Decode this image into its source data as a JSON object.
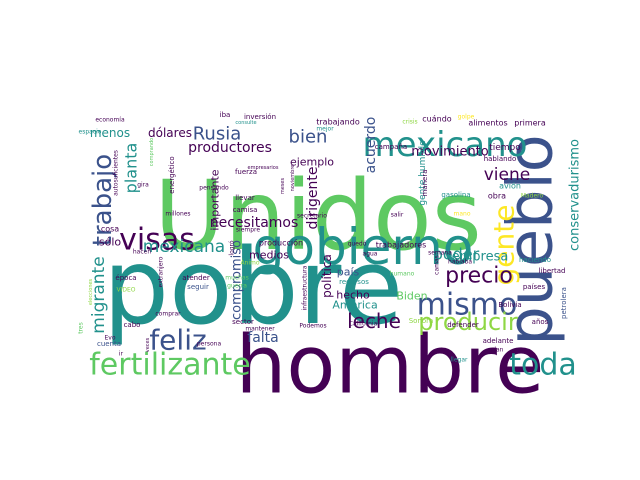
{
  "palette": {
    "purple": "#440154",
    "indigo": "#3b528b",
    "teal": "#21918c",
    "green": "#5ec962",
    "lime": "#8fd744",
    "yellow": "#fde725",
    "blue": "#31688e",
    "sea": "#35b779"
  },
  "words": [
    {
      "text": "Unidos"
    },
    {
      "text": "pobre"
    },
    {
      "text": "hombre"
    },
    {
      "text": "pueblo"
    },
    {
      "text": "gobierno"
    },
    {
      "text": "mexicano"
    },
    {
      "text": "fertilizante"
    },
    {
      "text": "visas"
    },
    {
      "text": "mismo"
    },
    {
      "text": "toda"
    },
    {
      "text": "feliz"
    },
    {
      "text": "gente"
    },
    {
      "text": "trabajo"
    },
    {
      "text": "producir"
    },
    {
      "text": "precio"
    },
    {
      "text": "leche"
    },
    {
      "text": "Rusia"
    },
    {
      "text": "bien"
    },
    {
      "text": "mexicana"
    },
    {
      "text": "viene"
    },
    {
      "text": "migrante"
    },
    {
      "text": "poder"
    },
    {
      "text": "planta"
    },
    {
      "text": "productores"
    },
    {
      "text": "necesitamos"
    },
    {
      "text": "movimiento"
    },
    {
      "text": "conservadurismo"
    },
    {
      "text": "empresa"
    },
    {
      "text": "dirigente"
    },
    {
      "text": "acuerdo"
    },
    {
      "text": "compromiso"
    },
    {
      "text": "falta"
    },
    {
      "text": "dólares"
    },
    {
      "text": "menos"
    },
    {
      "text": "ejemplo"
    },
    {
      "text": "medios"
    },
    {
      "text": "hecho"
    },
    {
      "text": "política"
    },
    {
      "text": "América"
    },
    {
      "text": "país"
    },
    {
      "text": "Biden"
    },
    {
      "text": "sólo"
    },
    {
      "text": "importante"
    },
    {
      "text": "gente humilde"
    },
    {
      "text": "trabajando"
    },
    {
      "text": "campaña"
    },
    {
      "text": "cuándo"
    },
    {
      "text": "primera"
    },
    {
      "text": "alimentos"
    },
    {
      "text": "tiempo"
    },
    {
      "text": "hablando"
    },
    {
      "text": "avión"
    },
    {
      "text": "obra"
    },
    {
      "text": "gasolina"
    },
    {
      "text": "haciendo"
    },
    {
      "text": "libertad"
    },
    {
      "text": "países"
    },
    {
      "text": "Bolivia"
    },
    {
      "text": "petrolera"
    },
    {
      "text": "años"
    },
    {
      "text": "adelante"
    },
    {
      "text": "plan"
    },
    {
      "text": "llegar"
    },
    {
      "text": "defender"
    },
    {
      "text": "Sonora"
    },
    {
      "text": "California"
    },
    {
      "text": "Podemos"
    },
    {
      "text": "trabajadores"
    },
    {
      "text": "producción"
    },
    {
      "text": "recursos"
    },
    {
      "text": "humano"
    },
    {
      "text": "agua"
    },
    {
      "text": "quedó"
    },
    {
      "text": "hacen"
    },
    {
      "text": "época"
    },
    {
      "text": "atender"
    },
    {
      "text": "seguir"
    },
    {
      "text": "muchas"
    },
    {
      "text": "guerra"
    },
    {
      "text": "sector"
    },
    {
      "text": "mantener"
    },
    {
      "text": "persona"
    },
    {
      "text": "cuenta"
    },
    {
      "text": "comprar"
    },
    {
      "text": "cabo"
    },
    {
      "text": "cosa"
    },
    {
      "text": "extranjero"
    },
    {
      "text": "VIDEO"
    },
    {
      "text": "Evo"
    },
    {
      "text": "veces"
    },
    {
      "text": "elecciones"
    },
    {
      "text": "camisa"
    },
    {
      "text": "llevar"
    },
    {
      "text": "fuerza"
    },
    {
      "text": "energético"
    },
    {
      "text": "autosuficientes"
    },
    {
      "text": "gira"
    },
    {
      "text": "millones"
    },
    {
      "text": "siempre"
    },
    {
      "text": "secretario"
    },
    {
      "text": "salir"
    },
    {
      "text": "manera"
    },
    {
      "text": "mano"
    },
    {
      "text": "semana"
    },
    {
      "text": "hablaba"
    },
    {
      "text": "camas"
    },
    {
      "text": "mejor"
    },
    {
      "text": "crisis"
    },
    {
      "text": "golpe"
    },
    {
      "text": "iba"
    },
    {
      "text": "inversión"
    },
    {
      "text": "economía"
    },
    {
      "text": "espacio"
    },
    {
      "text": "consulte"
    },
    {
      "text": "Ánimo"
    },
    {
      "text": "infraestructura"
    },
    {
      "text": "noviembre"
    },
    {
      "text": "pensando"
    },
    {
      "text": "empresarios"
    },
    {
      "text": "Madero"
    },
    {
      "text": "logró"
    },
    {
      "text": "tres"
    },
    {
      "text": "meses"
    },
    {
      "text": "comprando"
    },
    {
      "text": "ir"
    }
  ]
}
